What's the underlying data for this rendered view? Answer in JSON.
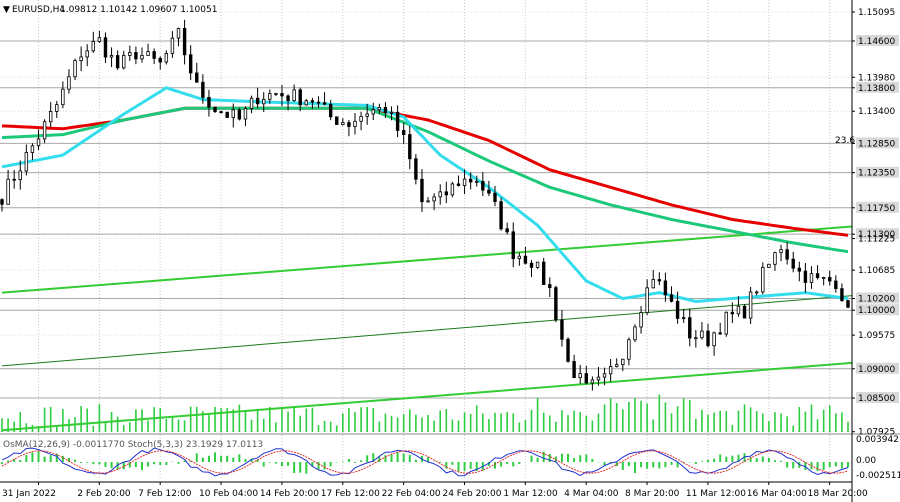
{
  "chart_data": {
    "type": "candlestick",
    "symbol_header": "EURUSD,H4",
    "ohlc_header": "1.09812 1.10142 1.09607 1.10051",
    "current_price": 1.10051,
    "price_axis": {
      "ticks": [
        "1.15095",
        "1.14600",
        "1.13980",
        "1.13800",
        "1.13400",
        "1.12850",
        "1.12350",
        "1.11750",
        "1.11300",
        "1.11225",
        "1.10685",
        "1.10200",
        "1.10000",
        "1.09575",
        "1.09000",
        "1.08500",
        "1.07925"
      ],
      "highlighted": [
        "1.14600",
        "1.13800",
        "1.12850",
        "1.12350",
        "1.11750",
        "1.11300",
        "1.10200",
        "1.10000",
        "1.09000",
        "1.08500"
      ],
      "ylim": [
        1.0792,
        1.153
      ]
    },
    "time_axis": [
      "31 Jan 2022",
      "2 Feb 20:00",
      "7 Feb 12:00",
      "10 Feb 04:00",
      "14 Feb 20:00",
      "17 Feb 12:00",
      "22 Feb 04:00",
      "24 Feb 20:00",
      "1 Mar 12:00",
      "4 Mar 04:00",
      "8 Mar 20:00",
      "11 Mar 12:00",
      "16 Mar 04:00",
      "18 Mar 20:00"
    ],
    "fib_label": "23.6",
    "horizontal_levels": [
      1.146,
      1.138,
      1.1285,
      1.1235,
      1.1175,
      1.113,
      1.102,
      1.1,
      1.09,
      1.085
    ],
    "anchor_prices": [
      [
        0,
        1.1195
      ],
      [
        5,
        1.128
      ],
      [
        9,
        1.135
      ],
      [
        13,
        1.144
      ],
      [
        16,
        1.146
      ],
      [
        19,
        1.1415
      ],
      [
        22,
        1.144
      ],
      [
        26,
        1.142
      ],
      [
        29,
        1.147
      ],
      [
        32,
        1.138
      ],
      [
        35,
        1.1345
      ],
      [
        39,
        1.1325
      ],
      [
        42,
        1.1365
      ],
      [
        45,
        1.137
      ],
      [
        48,
        1.1365
      ],
      [
        51,
        1.136
      ],
      [
        54,
        1.133
      ],
      [
        57,
        1.132
      ],
      [
        60,
        1.134
      ],
      [
        63,
        1.1345
      ],
      [
        66,
        1.129
      ],
      [
        69,
        1.1185
      ],
      [
        72,
        1.119
      ],
      [
        75,
        1.122
      ],
      [
        78,
        1.1225
      ],
      [
        81,
        1.1175
      ],
      [
        84,
        1.11
      ],
      [
        87,
        1.1085
      ],
      [
        90,
        1.1035
      ],
      [
        93,
        1.091
      ],
      [
        96,
        1.0865
      ],
      [
        99,
        1.088
      ],
      [
        102,
        1.093
      ],
      [
        105,
        1.101
      ],
      [
        107,
        1.106
      ],
      [
        110,
        1.101
      ],
      [
        113,
        1.096
      ],
      [
        116,
        1.095
      ],
      [
        119,
        1.0985
      ],
      [
        122,
        1.1
      ],
      [
        125,
        1.106
      ],
      [
        128,
        1.111
      ],
      [
        131,
        1.1065
      ],
      [
        134,
        1.105
      ],
      [
        137,
        1.105
      ],
      [
        139,
        1.1005
      ]
    ],
    "ma_fast": [
      [
        0,
        1.1245
      ],
      [
        10,
        1.1265
      ],
      [
        20,
        1.1335
      ],
      [
        27,
        1.138
      ],
      [
        33,
        1.136
      ],
      [
        45,
        1.1355
      ],
      [
        60,
        1.135
      ],
      [
        66,
        1.133
      ],
      [
        72,
        1.1265
      ],
      [
        80,
        1.121
      ],
      [
        88,
        1.1145
      ],
      [
        96,
        1.105
      ],
      [
        102,
        1.102
      ],
      [
        108,
        1.103
      ],
      [
        114,
        1.1015
      ],
      [
        120,
        1.102
      ],
      [
        126,
        1.1025
      ],
      [
        132,
        1.103
      ],
      [
        139,
        1.102
      ]
    ],
    "ma_mid": [
      [
        0,
        1.1295
      ],
      [
        10,
        1.13
      ],
      [
        20,
        1.1325
      ],
      [
        30,
        1.1345
      ],
      [
        45,
        1.1345
      ],
      [
        60,
        1.1345
      ],
      [
        70,
        1.1305
      ],
      [
        80,
        1.1255
      ],
      [
        90,
        1.121
      ],
      [
        100,
        1.118
      ],
      [
        110,
        1.1155
      ],
      [
        120,
        1.1135
      ],
      [
        130,
        1.1115
      ],
      [
        139,
        1.11
      ]
    ],
    "ma_slow": [
      [
        0,
        1.1315
      ],
      [
        10,
        1.131
      ],
      [
        20,
        1.1325
      ],
      [
        30,
        1.1345
      ],
      [
        45,
        1.1345
      ],
      [
        60,
        1.1345
      ],
      [
        70,
        1.1325
      ],
      [
        80,
        1.129
      ],
      [
        90,
        1.124
      ],
      [
        100,
        1.121
      ],
      [
        110,
        1.118
      ],
      [
        120,
        1.1155
      ],
      [
        130,
        1.114
      ],
      [
        139,
        1.1128
      ]
    ],
    "trend_lines": [
      {
        "from": [
          0,
          1.103
        ],
        "to": [
          139,
          1.1143
        ]
      },
      {
        "from": [
          0,
          1.0905
        ],
        "to": [
          139,
          1.1025
        ]
      },
      {
        "from": [
          0,
          1.0795
        ],
        "to": [
          139,
          1.091
        ]
      }
    ],
    "indicator": {
      "label": "OsMA(12,26,9) -0.0011770  Stoch(5,3,3) 23.1929 17.0113",
      "ticks": [
        "0.003942",
        "0.00",
        "-0.002511"
      ]
    }
  }
}
